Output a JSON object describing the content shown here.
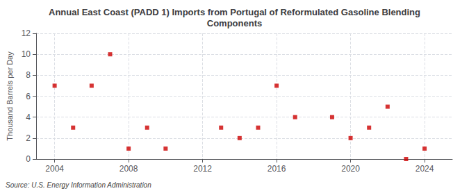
{
  "chart_data": {
    "type": "scatter",
    "title": "Annual East Coast (PADD 1) Imports from Portugal of Reformulated Gasoline Blending\nComponents",
    "ylabel": "Thousand Barrels per Day",
    "source": "Source: U.S. Energy Information Administration",
    "x": [
      2004,
      2005,
      2006,
      2007,
      2008,
      2009,
      2010,
      2013,
      2014,
      2015,
      2016,
      2017,
      2019,
      2020,
      2021,
      2022,
      2023,
      2024
    ],
    "values": [
      7,
      3,
      7,
      10,
      1,
      3,
      1,
      3,
      2,
      3,
      7,
      4,
      4,
      2,
      3,
      5,
      0,
      1
    ],
    "color": "#cc0000",
    "marker": "square",
    "xlim": [
      2003,
      2025.5
    ],
    "ylim": [
      0,
      12
    ],
    "xticks": [
      2004,
      2008,
      2012,
      2016,
      2020,
      2024
    ],
    "yticks": [
      0,
      2,
      4,
      6,
      8,
      10,
      12
    ],
    "grid": true
  }
}
